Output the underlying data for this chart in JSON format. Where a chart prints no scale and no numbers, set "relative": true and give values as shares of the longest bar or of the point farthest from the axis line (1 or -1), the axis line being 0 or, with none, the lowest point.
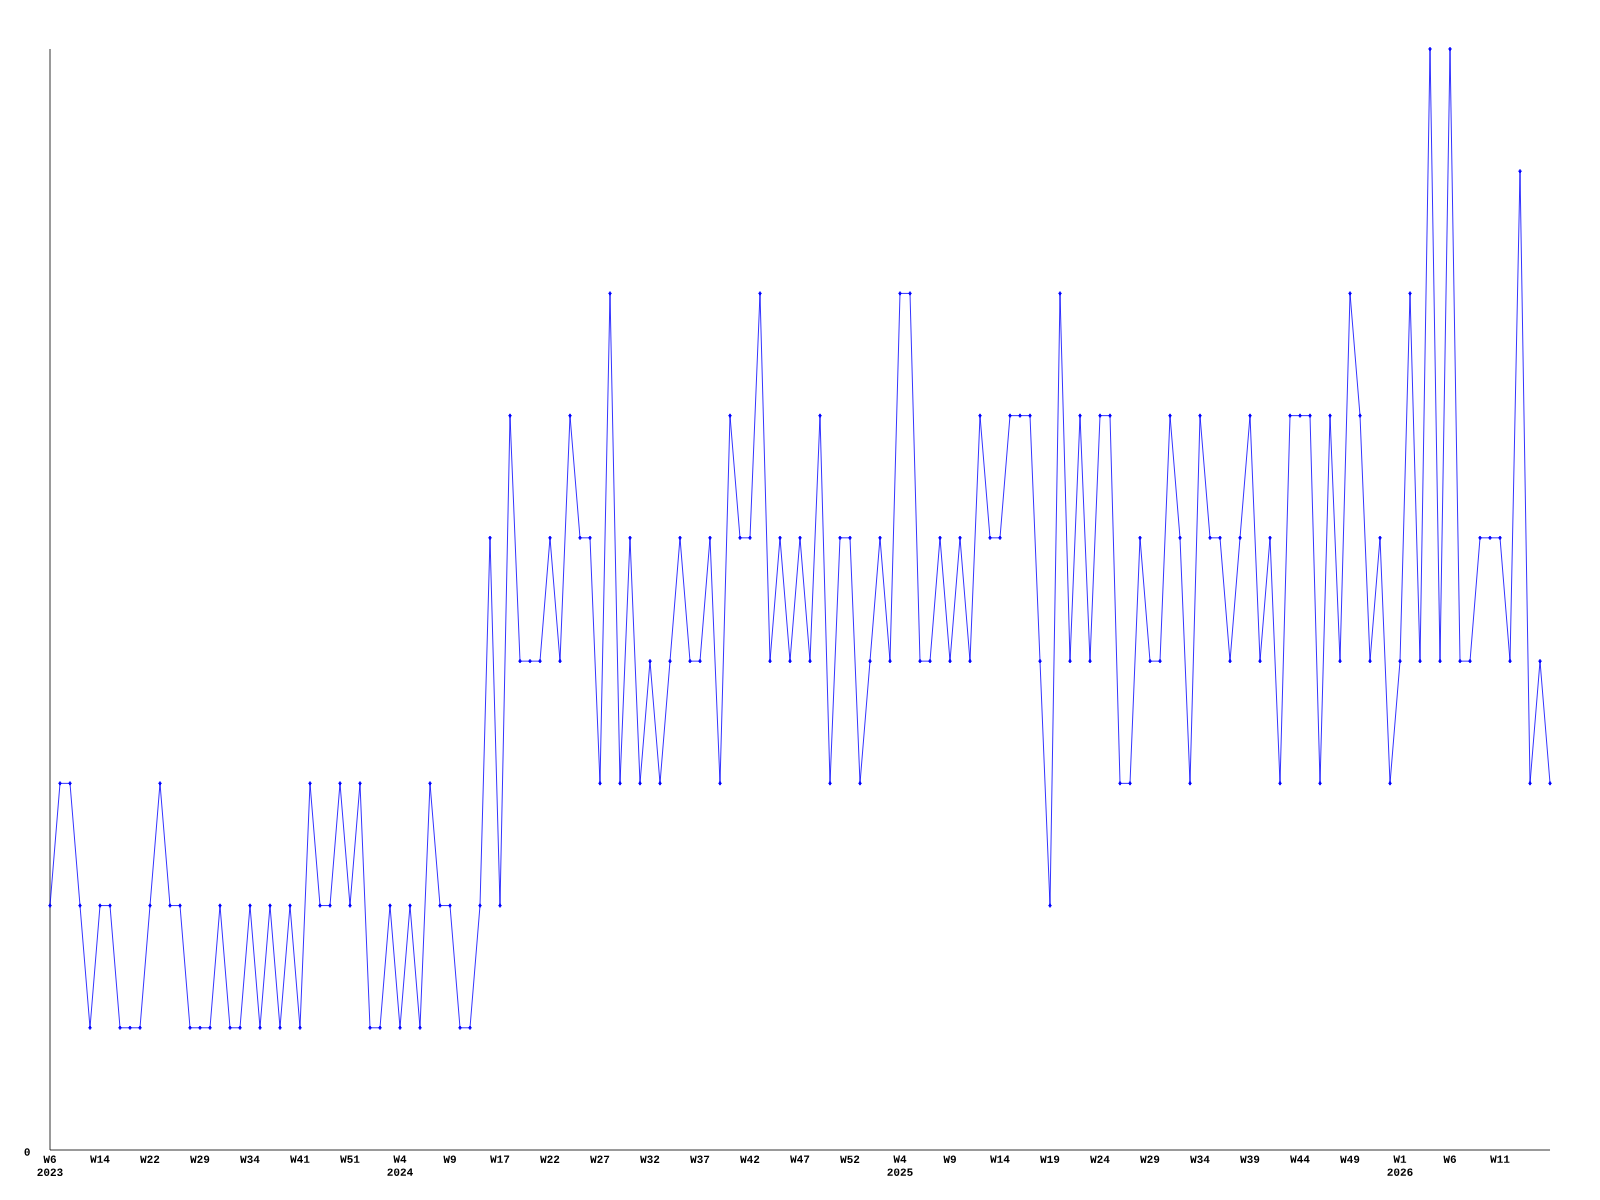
{
  "chart_data": {
    "type": "line",
    "relative": true,
    "color": "#0000ff",
    "marker": "diamond",
    "annotations": [
      "0"
    ],
    "categories": [
      "W6\n2023",
      null,
      null,
      null,
      null,
      "W14",
      null,
      null,
      null,
      null,
      "W22",
      null,
      null,
      null,
      null,
      "W29",
      null,
      null,
      null,
      null,
      "W34",
      null,
      null,
      null,
      null,
      "W41",
      null,
      null,
      null,
      null,
      "W51",
      null,
      null,
      null,
      null,
      "W4\n2024",
      null,
      null,
      null,
      null,
      "W9",
      null,
      null,
      null,
      null,
      "W17",
      null,
      null,
      null,
      null,
      "W22",
      null,
      null,
      null,
      null,
      "W27",
      null,
      null,
      null,
      null,
      "W32",
      null,
      null,
      null,
      null,
      "W37",
      null,
      null,
      null,
      null,
      "W42",
      null,
      null,
      null,
      null,
      "W47",
      null,
      null,
      null,
      null,
      "W52",
      null,
      null,
      null,
      null,
      "W4\n2025",
      null,
      null,
      null,
      null,
      "W9",
      null,
      null,
      null,
      null,
      "W14",
      null,
      null,
      null,
      null,
      "W19",
      null,
      null,
      null,
      null,
      "W24",
      null,
      null,
      null,
      null,
      "W29",
      null,
      null,
      null,
      null,
      "W34",
      null,
      null,
      null,
      null,
      "W39",
      null,
      null,
      null,
      null,
      "W44",
      null,
      null,
      null,
      null,
      "W49",
      null,
      null,
      null,
      null,
      "W1\n2026",
      null,
      null,
      null,
      null,
      "W6",
      null,
      null,
      null,
      null,
      "W11",
      null,
      null,
      null,
      null,
      null
    ],
    "values": [
      0.222,
      0.333,
      0.333,
      0.222,
      0.111,
      0.222,
      0.222,
      0.111,
      0.111,
      0.111,
      0.222,
      0.333,
      0.222,
      0.222,
      0.111,
      0.111,
      0.111,
      0.222,
      0.111,
      0.111,
      0.222,
      0.111,
      0.222,
      0.111,
      0.222,
      0.111,
      0.333,
      0.222,
      0.222,
      0.333,
      0.222,
      0.333,
      0.111,
      0.111,
      0.222,
      0.111,
      0.222,
      0.111,
      0.333,
      0.222,
      0.222,
      0.111,
      0.111,
      0.222,
      0.556,
      0.222,
      0.667,
      0.444,
      0.444,
      0.444,
      0.556,
      0.444,
      0.667,
      0.556,
      0.556,
      0.333,
      0.778,
      0.333,
      0.556,
      0.333,
      0.444,
      0.333,
      0.444,
      0.556,
      0.444,
      0.444,
      0.556,
      0.333,
      0.667,
      0.556,
      0.556,
      0.778,
      0.444,
      0.556,
      0.444,
      0.556,
      0.444,
      0.667,
      0.333,
      0.556,
      0.556,
      0.333,
      0.444,
      0.556,
      0.444,
      0.778,
      0.778,
      0.444,
      0.444,
      0.556,
      0.444,
      0.556,
      0.444,
      0.667,
      0.556,
      0.556,
      0.667,
      0.667,
      0.667,
      0.444,
      0.222,
      0.778,
      0.444,
      0.667,
      0.444,
      0.667,
      0.667,
      0.333,
      0.333,
      0.556,
      0.444,
      0.444,
      0.667,
      0.556,
      0.333,
      0.667,
      0.556,
      0.556,
      0.444,
      0.556,
      0.667,
      0.444,
      0.556,
      0.333,
      0.667,
      0.667,
      0.667,
      0.333,
      0.667,
      0.444,
      0.778,
      0.667,
      0.444,
      0.556,
      0.333,
      0.444,
      0.778,
      0.444,
      1,
      0.444,
      1,
      0.444,
      0.444,
      0.556,
      0.556,
      0.556,
      0.444,
      0.889,
      0.333,
      0.444,
      0.333
    ]
  }
}
